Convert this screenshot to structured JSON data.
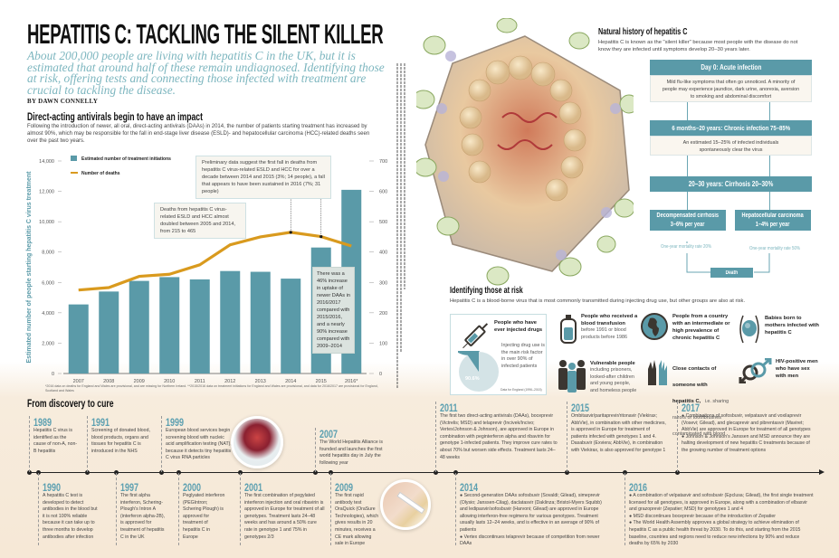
{
  "header": {
    "title": "HEPATITIS C: TACKLING THE SILENT KILLER",
    "subtitle": "About 200,000 people are living with hepatitis C in the UK, but it is estimated that around half of these remain undiagnosed. Identifying those at risk, offering tests and connecting those infected with treatment are crucial to tackling the disease.",
    "byline": "BY DAWN CONNELLY"
  },
  "daa_section": {
    "heading": "Direct-acting antivirals begin to have an impact",
    "intro": "Following the introduction of newer, all oral, direct-acting antivirals (DAAs) in 2014, the number of patients starting treatment has increased by almost 90%, which may be responsible for the fall in end-stage liver disease (ESLD)- and hepatocellular carcinoma (HCC)-related deaths seen over the past two years.",
    "annotations": [
      "Preliminary data suggest the first fall in deaths from hepatitis C virus-related ESLD and HCC for over a decade between 2014 and 2015 (3%; 14 people), a fall that appears to have been sustained in 2016 (7%; 31 people)",
      "Deaths from hepatitis C virus-related ESLD and HCC almost doubled between 2005 and 2014, from 215 to 465",
      "There was a 46% increase in uptake of newer DAAs in 2016/2017 compared with 2015/2016, and a nearly 90% increase compared with 2009–2014"
    ],
    "footnote": "*2016 data on deaths for England and Wales are provisional, and are missing for Northern Ireland. **2015/2016 data on treatment initiations for England and Wales are provisional, and data for 2016/2017 are provisional for England, Scotland and Wales"
  },
  "chart_data": {
    "type": "bar+line",
    "categories": [
      "2007",
      "2008",
      "2009",
      "2010",
      "2011",
      "2012",
      "2013",
      "2014",
      "2015",
      "2016*"
    ],
    "series": [
      {
        "name": "Estimated number of treatment initiations",
        "type": "bar",
        "axis": "left",
        "color": "#5a9aa8",
        "values": [
          4550,
          5400,
          6100,
          6350,
          6200,
          6750,
          6700,
          6250,
          8300,
          12100
        ]
      },
      {
        "name": "Number of deaths",
        "type": "line",
        "axis": "right",
        "color": "#d99a1e",
        "values": [
          275,
          283,
          320,
          327,
          358,
          424,
          450,
          465,
          451,
          420
        ]
      }
    ],
    "ylabel": "Estimated number of people starting hepatitis C virus treatment",
    "y2label": "Number of deaths",
    "ylim": [
      0,
      14000
    ],
    "y2lim": [
      0,
      700
    ],
    "yticks": [
      "0",
      "2,000",
      "4,000",
      "6,000",
      "8,000",
      "10,000",
      "12,000",
      "14,000"
    ],
    "y2ticks": [
      "0",
      "100",
      "200",
      "300",
      "400",
      "500",
      "600",
      "700"
    ],
    "legend_position": "top-left",
    "grid": false
  },
  "natural_history": {
    "heading": "Natural history of hepatitis C",
    "intro": "Hepatitis C is known as the \"silent killer\" because most people with the disease do not know they are infected until symptoms develop 20–30 years later.",
    "stage1_title": "Day 0: Acute infection",
    "stage1_text": "Mild flu-like symptoms that often go unnoticed. A minority of people may experience jaundice, dark urine, anorexia, aversion to smoking and abdominal discomfort",
    "stage2_title": "6 months–20 years: Chronic infection 75–85%",
    "stage2_text": "An estimated 15–25% of infected individuals spontaneously clear the virus",
    "stage3_title": "20–30 years: Cirrhosis 20–30%",
    "decomp_title": "Decompensated cirrhosis",
    "decomp_rate": "3–6% per year",
    "hcc_title": "Hepatocellular carcinoma",
    "hcc_rate": "1–4% per year",
    "decomp_mortality": "One-year mortality rate 20%",
    "hcc_mortality": "One-year mortality rate 50%",
    "death": "Death"
  },
  "risk": {
    "heading": "Identifying those at risk",
    "intro": "Hepatitis C is a blood-borne virus that is most commonly transmitted during injecting drug use, but other groups are also at risk.",
    "drugs_title": "People who have ever injected drugs",
    "drugs_text": "Injecting drug use is the main risk factor in over 90% of infected patients",
    "drugs_pct_label": "90.6%",
    "drugs_pct": 90.6,
    "drugs_source": "Data for England (1996–2015)",
    "groups": [
      {
        "title": "People who received a blood transfusion",
        "text": "before 1991 or blood products before 1986",
        "icon": "blood-bag-icon"
      },
      {
        "title": "Vulnerable people",
        "text": "including prisoners, looked-after children and young people, and homeless people",
        "icon": "people-group-icon"
      },
      {
        "title": "People from a country with an intermediate or high prevalence of chronic hepatitis C",
        "text": "",
        "icon": "globe-icon"
      },
      {
        "title": "Close contacts of someone with hepatitis C,",
        "text": "i.e. sharing razors or toothbrushes contaminated with blood",
        "icon": "hands-icon"
      },
      {
        "title": "Babies born to mothers infected with hepatitis C",
        "text": "",
        "icon": "pregnancy-icon"
      },
      {
        "title": "HIV-positive men who have sex with men",
        "text": "",
        "icon": "male-symbols-icon"
      }
    ]
  },
  "timeline": {
    "heading": "From discovery to cure",
    "top": [
      {
        "year": "1989",
        "text": [
          "Hepatitis C virus is identified as the cause of non-A, non-B hepatitis"
        ]
      },
      {
        "year": "1991",
        "text": [
          "Screening of donated blood, blood products, organs and tissues for hepatitis C is introduced in the NHS"
        ]
      },
      {
        "year": "1999",
        "text": [
          "European blood services begin screening blood with nucleic acid amplification testing (NAT), because it detects tiny hepatitis C virus RNA particles"
        ]
      },
      {
        "year": "2007",
        "text": [
          "The World Hepatitis Alliance is founded and launches the first world hepatitis day in July the following year"
        ]
      },
      {
        "year": "2011",
        "text": [
          "The first two direct-acting antivirals (DAAs), boceprevir (Victrelis; MSD) and telaprevir (Incivek/Incivo; Vertex/Johnson & Johnson), are approved in Europe in combination with peginterferon alpha and ribavirin for genotype 1-infected patients. They improve cure rates to about 70% but worsen side effects. Treatment lasts 24–48 weeks"
        ]
      },
      {
        "year": "2015",
        "text": [
          "Ombitasvir/paritaprevir/ritonavir (Viekirax; AbbVie), in combination with other medicines, is approved in Europe for treatment of patients infected with genotypes 1 and 4. Dasabuvir (Exviera; AbbVie), in combination with Viekirax, is also approved for genotype 1"
        ]
      },
      {
        "year": "2017",
        "text": [
          "● Combinations of sofosbuvir, velpatasvir and voxilaprevir (Vosevi; Gilead), and glecaprevir and pibrentasvir (Maviret; AbbVie) are approved in Europe for treatment of all genotypes",
          "● Johnson & Johnson's Janssen and MSD announce they are halting development of new hepatitis C treatments because of the growing number of treatment options"
        ]
      }
    ],
    "bottom": [
      {
        "year": "1990",
        "text": [
          "A hepatitis C test is developed to detect antibodies in the blood but it is not 100% reliable because it can take up to three months to develop antibodies after infection"
        ]
      },
      {
        "year": "1997",
        "text": [
          "The first alpha interferon, Schering-Plough's Intron A (interferon alpha-2B), is approved for treatment of hepatitis C in the UK"
        ]
      },
      {
        "year": "2000",
        "text": [
          "Peglyated interferon (PEGIntron; Schering Plough) is approved for treatment of hepatitis C in Europe"
        ]
      },
      {
        "year": "2001",
        "text": [
          "The first combination of pegylated interferon injection and oral ribavirin is approved in Europe for treatment of all genotypes. Treatment lasts 24–48 weeks and has around a 50% cure rate in genotype 1 and 75% in genotypes 2/3"
        ]
      },
      {
        "year": "2009",
        "text": [
          "The first rapid antibody test OraQuick (OraSure Technologies), which gives results in 20 minutes, receives a CE mark allowing sale in Europe"
        ]
      },
      {
        "year": "2014",
        "text": [
          "● Second-generation DAAs sofosbuvir (Sovaldi; Gilead), simeprevir (Olysio; Janssen-Cilag), daclatasvir (Daklinza; Bristol-Myers Squibb) and ledipasvir/sofosbuvir (Harvoni; Gilead) are approved in Europe allowing interferon-free regimens for various genotypes. Treatment usually lasts 12–24 weeks, and is effective in an average of 90% of patients",
          "● Vertex discontinues telaprevir because of competition from newer DAAs"
        ]
      },
      {
        "year": "2016",
        "text": [
          "● A combination of velpatasvir and sofosbuvir (Epclusa; Gilead), the first single treatment licensed for all genotypes, is approved in Europe, along with a combination of elbasvir and grazoprevir (Zepatier; MSD) for genotypes 1 and 4",
          "● MSD discontinues boceprevir because of the introduction of Zepatier",
          "● The World Health Assembly approves a global strategy to achieve elimination of hepatitis C as a public health threat by 2030. To do this, and starting from the 2015 baseline, countries and regions need to reduce new infections by 90% and reduce deaths by 65% by 2030"
        ]
      }
    ]
  },
  "colors": {
    "teal": "#5a9aa8",
    "gold": "#d99a1e",
    "cream": "#f6e8d6",
    "subtitle": "#7db6bf"
  }
}
